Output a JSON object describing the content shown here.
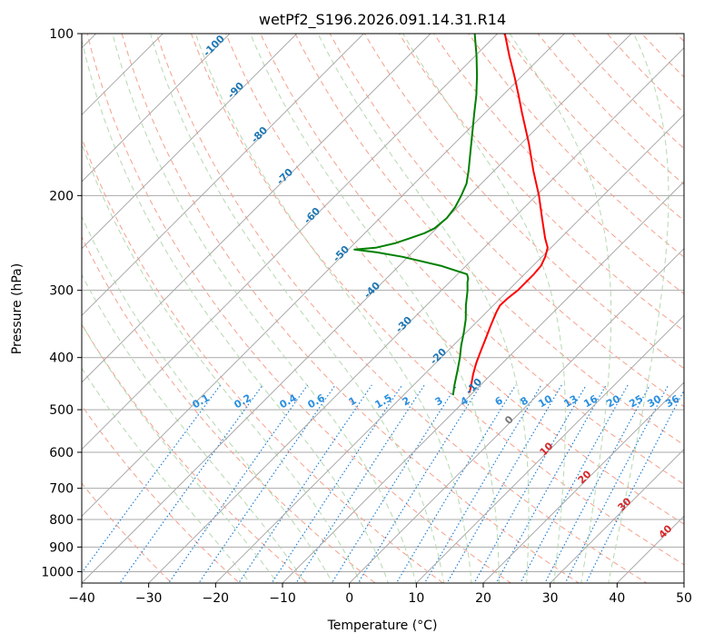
{
  "chart_data": {
    "type": "line",
    "title": "wetPf2_S196.2026.091.14.31.R14",
    "xlabel": "Temperature (°C)",
    "ylabel": "Pressure (hPa)",
    "xlim": [
      -40,
      50
    ],
    "ylim": [
      1050,
      100
    ],
    "y_scale": "log",
    "x_ticks": [
      -40,
      -30,
      -20,
      -10,
      0,
      10,
      20,
      30,
      40,
      50
    ],
    "x_tick_labels": [
      "−40",
      "−30",
      "−20",
      "−10",
      "0",
      "10",
      "20",
      "30",
      "40",
      "50"
    ],
    "y_ticks": [
      100,
      200,
      300,
      400,
      500,
      600,
      700,
      800,
      900,
      1000
    ],
    "y_tick_labels": [
      "100",
      "200",
      "300",
      "400",
      "500",
      "600",
      "700",
      "800",
      "900",
      "1000"
    ],
    "grid": true,
    "skew": 45,
    "series": [
      {
        "color": "#ff0000",
        "p": [
          465,
          450,
          430,
          410,
          390,
          370,
          350,
          330,
          320,
          310,
          300,
          290,
          280,
          270,
          260,
          250,
          240,
          220,
          200,
          180,
          160,
          140,
          130,
          120,
          110,
          100
        ],
        "t": [
          -10.5,
          -11.4,
          -12.7,
          -13.9,
          -15.0,
          -16.1,
          -17.3,
          -18.5,
          -19.0,
          -18.9,
          -18.6,
          -18.6,
          -18.6,
          -18.8,
          -19.5,
          -20.5,
          -22.3,
          -25.8,
          -29.6,
          -34.1,
          -38.9,
          -44.6,
          -47.7,
          -51.1,
          -54.9,
          -58.9
        ]
      },
      {
        "color": "#008000",
        "p": [
          470,
          450,
          420,
          400,
          380,
          360,
          340,
          320,
          300,
          290,
          285,
          280,
          270,
          260,
          255,
          252,
          250,
          245,
          240,
          235,
          230,
          220,
          210,
          200,
          190,
          180,
          160,
          140,
          130,
          120,
          110,
          100
        ],
        "t": [
          -12.6,
          -13.9,
          -15.8,
          -17.2,
          -18.8,
          -20.3,
          -22.0,
          -24.1,
          -26.1,
          -27.3,
          -27.8,
          -28.6,
          -33.8,
          -40.8,
          -45.3,
          -49.1,
          -46.2,
          -43.9,
          -42.5,
          -41.1,
          -40.3,
          -40.0,
          -40.4,
          -41.2,
          -42.2,
          -43.8,
          -47.5,
          -51.7,
          -54.0,
          -56.7,
          -59.8,
          -63.4
        ]
      }
    ],
    "annotations": {
      "dry_adiabats": [
        "10",
        "20",
        "30",
        "40"
      ],
      "moist_adiabats": [
        "-100",
        "-90",
        "-80",
        "-70",
        "-60",
        "-50",
        "-40",
        "-30",
        "-20",
        "-10"
      ],
      "mixing_ratios": [
        "0.1",
        "0.2",
        "0.4",
        "0.6",
        "1",
        "1.5",
        "2",
        "3",
        "4",
        "6",
        "8",
        "10",
        "13",
        "16",
        "20",
        "25",
        "30",
        "36"
      ],
      "zero_line": "0"
    },
    "colors": {
      "temperature": "#ff0000",
      "dewpoint": "#008000",
      "dry_adiabat": "#f4a08c",
      "moist_adiabat": "#b5d9b0",
      "mixing_ratio": "#1f7fd4",
      "isotherm": "#aaaaaa",
      "annotation_blue": "#1f77b4",
      "annotation_red": "#d62728",
      "mixing_label": "#2a8fe0"
    }
  }
}
